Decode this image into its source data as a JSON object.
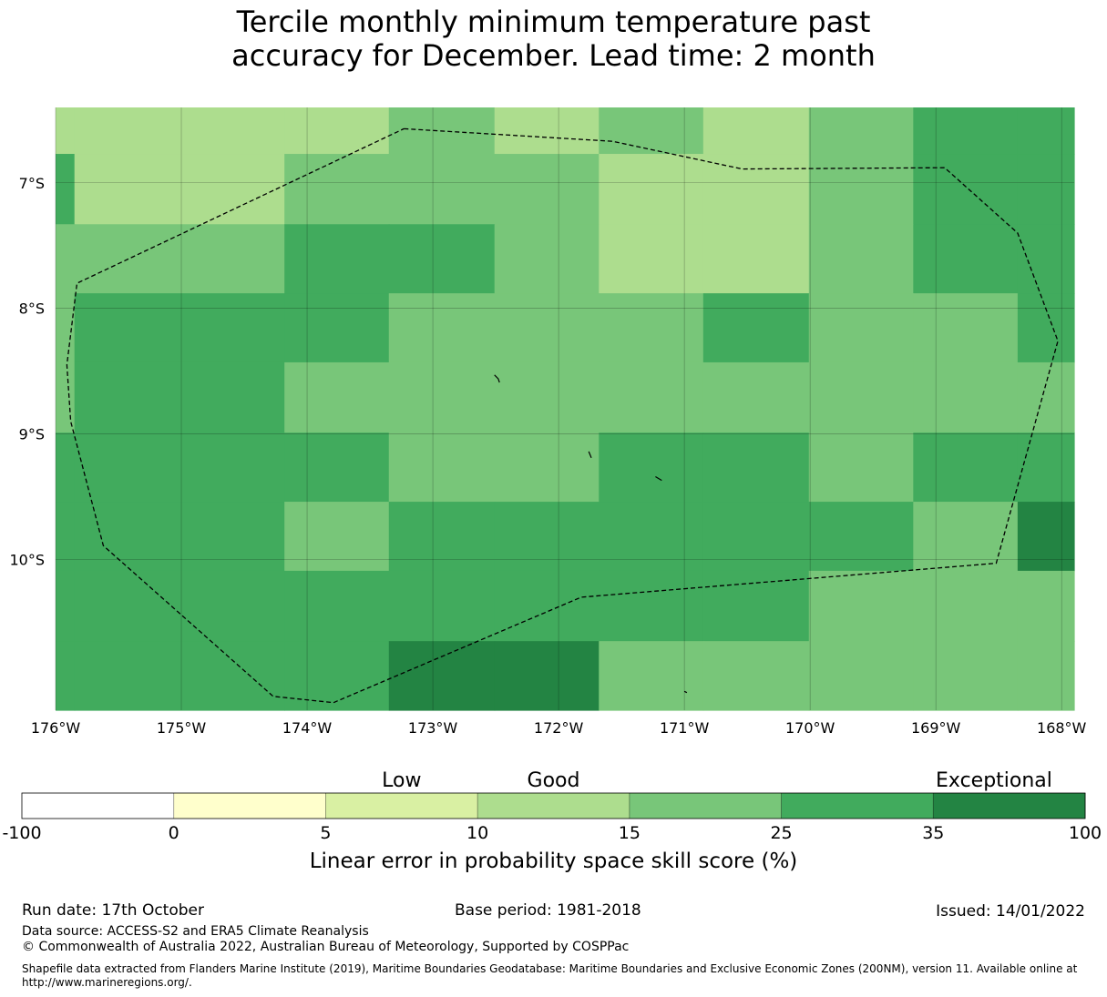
{
  "title": {
    "line1": "Tercile monthly minimum temperature past",
    "line2": "accuracy for December. Lead time: 2 month"
  },
  "map": {
    "lon_range": [
      -176,
      -167.9
    ],
    "lat_range": [
      -11.2,
      -6.4
    ],
    "lon_ticks": [
      {
        "value": -176,
        "label": "176°W"
      },
      {
        "value": -175,
        "label": "175°W"
      },
      {
        "value": -174,
        "label": "174°W"
      },
      {
        "value": -173,
        "label": "173°W"
      },
      {
        "value": -172,
        "label": "172°W"
      },
      {
        "value": -171,
        "label": "171°W"
      },
      {
        "value": -170,
        "label": "170°W"
      },
      {
        "value": -169,
        "label": "169°W"
      },
      {
        "value": -168,
        "label": "168°W"
      }
    ],
    "lat_ticks": [
      {
        "value": -7,
        "label": "7°S"
      },
      {
        "value": -8,
        "label": "8°S"
      },
      {
        "value": -9,
        "label": "9°S"
      },
      {
        "value": -10,
        "label": "10°S"
      }
    ],
    "grid_lines": true,
    "cell_colors": [
      [
        "#addd8e",
        "#addd8e",
        "#addd8e",
        "#78c679",
        "#addd8e",
        "#78c679",
        "#addd8e",
        "#78c679",
        "#41ab5d",
        "#41ab5d"
      ],
      [
        "#41ab5d",
        "#addd8e",
        "#78c679",
        "#78c679",
        "#78c679",
        "#addd8e",
        "#addd8e",
        "#78c679",
        "#41ab5d",
        "#41ab5d"
      ],
      [
        "#78c679",
        "#78c679",
        "#41ab5d",
        "#41ab5d",
        "#78c679",
        "#addd8e",
        "#addd8e",
        "#78c679",
        "#41ab5d",
        "#41ab5d"
      ],
      [
        "#78c679",
        "#41ab5d",
        "#41ab5d",
        "#78c679",
        "#78c679",
        "#78c679",
        "#41ab5d",
        "#78c679",
        "#78c679",
        "#41ab5d"
      ],
      [
        "#78c679",
        "#41ab5d",
        "#78c679",
        "#78c679",
        "#78c679",
        "#78c679",
        "#78c679",
        "#78c679",
        "#78c679",
        "#78c679"
      ],
      [
        "#41ab5d",
        "#41ab5d",
        "#41ab5d",
        "#78c679",
        "#78c679",
        "#41ab5d",
        "#41ab5d",
        "#78c679",
        "#41ab5d",
        "#41ab5d"
      ],
      [
        "#41ab5d",
        "#41ab5d",
        "#78c679",
        "#41ab5d",
        "#41ab5d",
        "#41ab5d",
        "#41ab5d",
        "#41ab5d",
        "#78c679",
        "#238443"
      ],
      [
        "#41ab5d",
        "#41ab5d",
        "#41ab5d",
        "#41ab5d",
        "#41ab5d",
        "#41ab5d",
        "#41ab5d",
        "#78c679",
        "#78c679",
        "#78c679"
      ],
      [
        "#41ab5d",
        "#41ab5d",
        "#41ab5d",
        "#238443",
        "#238443",
        "#78c679",
        "#78c679",
        "#78c679",
        "#78c679",
        "#78c679"
      ]
    ],
    "eez_boundary": [
      [
        -173.23,
        -6.57
      ],
      [
        -171.57,
        -6.67
      ],
      [
        -170.54,
        -6.89
      ],
      [
        -168.93,
        -6.88
      ],
      [
        -168.35,
        -7.4
      ],
      [
        -168.03,
        -8.26
      ],
      [
        -168.52,
        -10.03
      ],
      [
        -171.82,
        -10.3
      ],
      [
        -173.79,
        -11.14
      ],
      [
        -174.27,
        -11.09
      ],
      [
        -175.62,
        -9.89
      ],
      [
        -175.88,
        -8.9
      ],
      [
        -175.91,
        -8.45
      ],
      [
        -175.83,
        -7.8
      ],
      [
        -173.23,
        -6.57
      ]
    ],
    "islands": [
      [
        [
          -172.51,
          -8.53
        ],
        [
          -172.48,
          -8.56
        ],
        [
          -172.47,
          -8.59
        ]
      ],
      [
        [
          -171.76,
          -9.14
        ],
        [
          -171.74,
          -9.19
        ]
      ],
      [
        [
          -171.23,
          -9.34
        ],
        [
          -171.18,
          -9.37
        ]
      ],
      [
        [
          -171.0,
          -11.05
        ],
        [
          -170.98,
          -11.06
        ]
      ]
    ]
  },
  "colorbar": {
    "categories": [
      {
        "label": "Low",
        "position": 2.5
      },
      {
        "label": "Good",
        "position": 3.5
      },
      {
        "label": "Exceptional",
        "position": 6.4
      }
    ],
    "bins": [
      {
        "from": "-100",
        "to": "0",
        "color": "#ffffff"
      },
      {
        "from": "0",
        "to": "5",
        "color": "#ffffcc"
      },
      {
        "from": "5",
        "to": "10",
        "color": "#d9f0a3"
      },
      {
        "from": "10",
        "to": "15",
        "color": "#addd8e"
      },
      {
        "from": "15",
        "to": "25",
        "color": "#78c679"
      },
      {
        "from": "25",
        "to": "35",
        "color": "#41ab5d"
      },
      {
        "from": "35",
        "to": "100",
        "color": "#238443"
      }
    ],
    "tick_labels": [
      "-100",
      "0",
      "5",
      "10",
      "15",
      "25",
      "35",
      "100"
    ],
    "label": "Linear error in probability space skill score (%)"
  },
  "footer": {
    "run_date": "Run date: 17th October",
    "base_period": "Base period: 1981-2018",
    "issued": "Issued: 14/01/2022",
    "data_source": "Data source: ACCESS-S2 and ERA5 Climate Reanalysis",
    "copyright": "© Commonwealth of Australia 2022, Australian Bureau of Meteorology, Supported by COSPPac",
    "shapefile": "Shapefile data extracted from Flanders Marine Institute (2019), Maritime Boundaries Geodatabase: Maritime Boundaries and Exclusive Economic Zones (200NM), version 11. Available online at http://www.marineregions.org/."
  }
}
